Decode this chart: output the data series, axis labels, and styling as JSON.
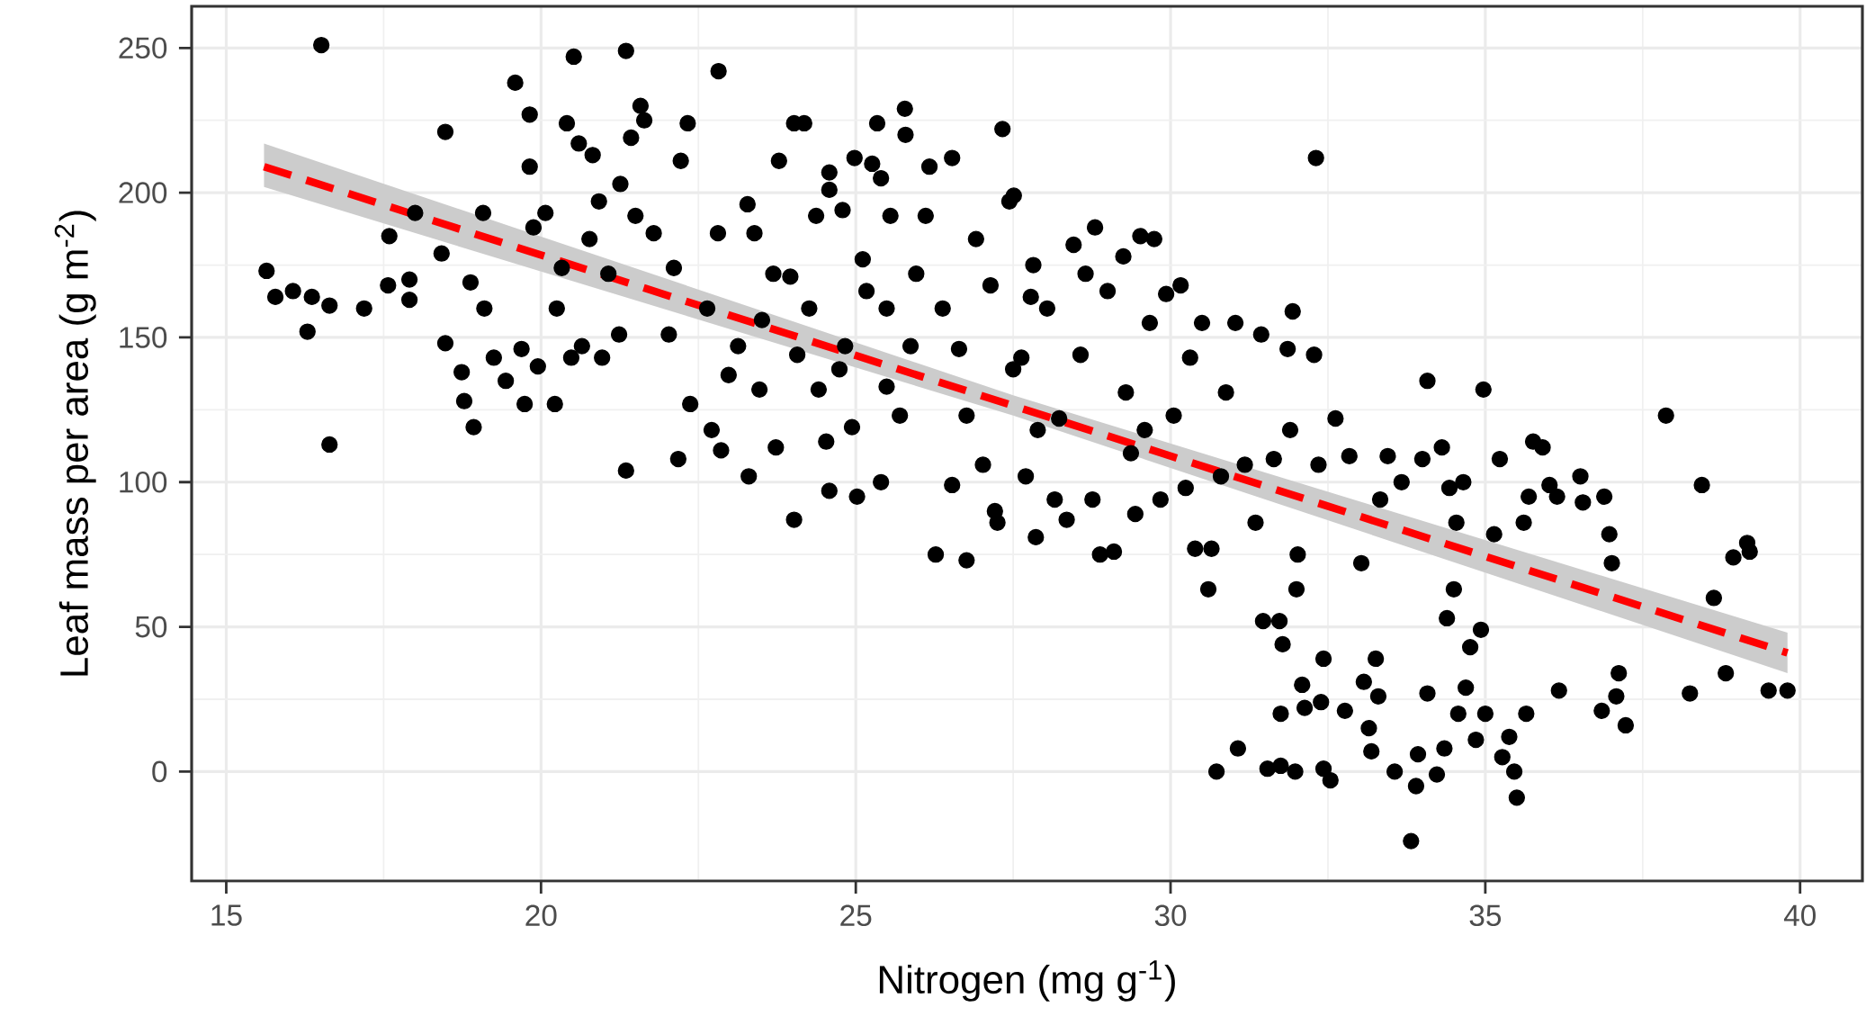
{
  "chart_data": {
    "type": "scatter",
    "xlabel": "Nitrogen (mg g$^{-1}$)",
    "ylabel": "Leaf mass per area (g m$^{-2}$)",
    "xlim": [
      14.45,
      40.99
    ],
    "ylim": [
      -37.8,
      264.4
    ],
    "xticks": [
      15,
      20,
      25,
      30,
      35,
      40
    ],
    "yticks": [
      0,
      50,
      100,
      150,
      200,
      250
    ],
    "grid": true,
    "marker": "circle",
    "series": [
      {
        "color": "#000000",
        "x": [
          15.64,
          15.78,
          16.06,
          16.29,
          16.36,
          16.51,
          16.64,
          16.64,
          17.19,
          17.59,
          17.57,
          17.91,
          17.91,
          18.0,
          18.48,
          18.42,
          18.48,
          18.74,
          18.78,
          18.93,
          19.08,
          19.1,
          18.88,
          19.25,
          19.44,
          19.59,
          19.69,
          19.74,
          19.82,
          19.82,
          19.88,
          19.95,
          20.07,
          20.22,
          20.25,
          20.33,
          20.41,
          20.48,
          20.52,
          20.6,
          20.65,
          20.77,
          20.82,
          20.92,
          20.97,
          21.07,
          21.24,
          21.26,
          21.35,
          21.35,
          21.43,
          21.5,
          21.58,
          21.64,
          21.79,
          22.03,
          22.11,
          22.18,
          22.22,
          22.33,
          22.37,
          22.64,
          22.71,
          22.82,
          22.81,
          22.86,
          22.98,
          23.13,
          23.28,
          23.3,
          23.39,
          23.51,
          23.47,
          23.69,
          23.73,
          23.78,
          23.96,
          24.02,
          24.02,
          24.07,
          24.18,
          24.26,
          24.37,
          24.41,
          24.53,
          24.58,
          24.58,
          24.58,
          24.74,
          24.79,
          24.83,
          24.94,
          24.98,
          25.02,
          25.11,
          25.17,
          25.26,
          25.34,
          25.4,
          25.49,
          25.55,
          25.4,
          25.49,
          25.7,
          25.78,
          25.79,
          25.87,
          25.96,
          26.11,
          26.17,
          26.27,
          26.38,
          26.53,
          26.53,
          26.64,
          26.76,
          26.76,
          26.91,
          27.02,
          27.14,
          27.21,
          27.25,
          27.33,
          27.44,
          27.51,
          27.5,
          27.63,
          27.7,
          27.78,
          27.82,
          27.86,
          27.89,
          28.04,
          28.16,
          28.23,
          28.35,
          28.46,
          28.57,
          28.65,
          28.8,
          28.76,
          28.88,
          29.0,
          29.1,
          29.25,
          29.29,
          29.37,
          29.44,
          29.52,
          29.59,
          29.67,
          29.74,
          29.84,
          29.93,
          30.05,
          30.16,
          30.24,
          30.31,
          30.39,
          30.5,
          30.6,
          30.65,
          30.73,
          30.8,
          30.88,
          31.03,
          31.07,
          31.18,
          31.35,
          31.44,
          31.47,
          31.54,
          31.64,
          31.73,
          31.75,
          31.78,
          31.75,
          31.86,
          31.9,
          31.94,
          31.98,
          32.0,
          32.02,
          32.09,
          32.13,
          32.28,
          32.31,
          32.35,
          32.39,
          32.43,
          32.43,
          32.54,
          32.62,
          32.77,
          32.84,
          33.03,
          33.07,
          33.15,
          33.19,
          33.26,
          33.3,
          33.33,
          33.45,
          33.56,
          33.67,
          33.82,
          33.9,
          33.93,
          34.0,
          34.08,
          34.08,
          34.23,
          34.31,
          34.35,
          34.39,
          34.43,
          34.5,
          34.54,
          34.57,
          34.65,
          34.69,
          34.76,
          34.85,
          34.93,
          34.97,
          35.0,
          35.14,
          35.23,
          35.27,
          35.38,
          35.46,
          35.5,
          35.61,
          35.65,
          35.69,
          35.76,
          35.91,
          36.02,
          36.14,
          36.17,
          36.51,
          36.55,
          36.85,
          36.89,
          36.97,
          37.01,
          37.08,
          37.12,
          37.23,
          37.87,
          38.25,
          38.44,
          38.63,
          38.82,
          38.94,
          39.16,
          39.2,
          39.5,
          39.8
        ],
        "values": [
          173,
          164,
          166,
          152,
          164,
          251,
          161,
          113,
          160,
          185,
          168,
          170,
          163,
          193,
          221,
          179,
          148,
          138,
          128,
          119,
          193,
          160,
          169,
          143,
          135,
          238,
          146,
          127,
          227,
          209,
          188,
          140,
          193,
          127,
          160,
          174,
          224,
          143,
          247,
          217,
          147,
          184,
          213,
          197,
          143,
          172,
          151,
          203,
          249,
          104,
          219,
          192,
          230,
          225,
          186,
          151,
          174,
          108,
          211,
          224,
          127,
          160,
          118,
          242,
          186,
          111,
          137,
          147,
          196,
          102,
          186,
          156,
          132,
          172,
          112,
          211,
          171,
          224,
          87,
          144,
          224,
          160,
          192,
          132,
          114,
          207,
          201,
          97,
          139,
          194,
          147,
          119,
          212,
          95,
          177,
          166,
          210,
          224,
          205,
          160,
          192,
          100,
          133,
          123,
          229,
          220,
          147,
          172,
          192,
          209,
          75,
          160,
          212,
          99,
          146,
          73,
          123,
          184,
          106,
          168,
          90,
          86,
          222,
          197,
          199,
          139,
          143,
          102,
          164,
          175,
          81,
          118,
          160,
          94,
          122,
          87,
          182,
          144,
          172,
          188,
          94,
          75,
          166,
          76,
          178,
          131,
          110,
          89,
          185,
          118,
          155,
          184,
          94,
          165,
          123,
          168,
          98,
          143,
          77,
          155,
          63,
          77,
          0,
          102,
          131,
          155,
          8,
          106,
          86,
          151,
          52,
          1,
          108,
          52,
          20,
          44,
          2,
          146,
          118,
          159,
          0,
          63,
          75,
          30,
          22,
          144,
          212,
          106,
          24,
          1,
          39,
          -3,
          122,
          21,
          109,
          72,
          31,
          15,
          7,
          39,
          26,
          94,
          109,
          0,
          100,
          -24,
          -5,
          6,
          108,
          27,
          135,
          -1,
          112,
          8,
          53,
          98,
          63,
          86,
          20,
          100,
          29,
          43,
          11,
          49,
          132,
          20,
          82,
          108,
          5,
          12,
          0,
          -9,
          86,
          20,
          95,
          114,
          112,
          99,
          95,
          28,
          102,
          93,
          21,
          95,
          82,
          72,
          26,
          34,
          16,
          123,
          27,
          99,
          60,
          34,
          74,
          79,
          76,
          28,
          28
        ]
      },
      {
        "type": "line",
        "color": "#ff0000",
        "line_style": "dashed",
        "marker": "none",
        "x": [
          15.6,
          27.5,
          39.8
        ],
        "values": [
          209,
          126.4,
          41
        ],
        "lower": [
          202,
          123,
          34
        ],
        "upper": [
          217,
          130,
          48
        ]
      }
    ]
  }
}
